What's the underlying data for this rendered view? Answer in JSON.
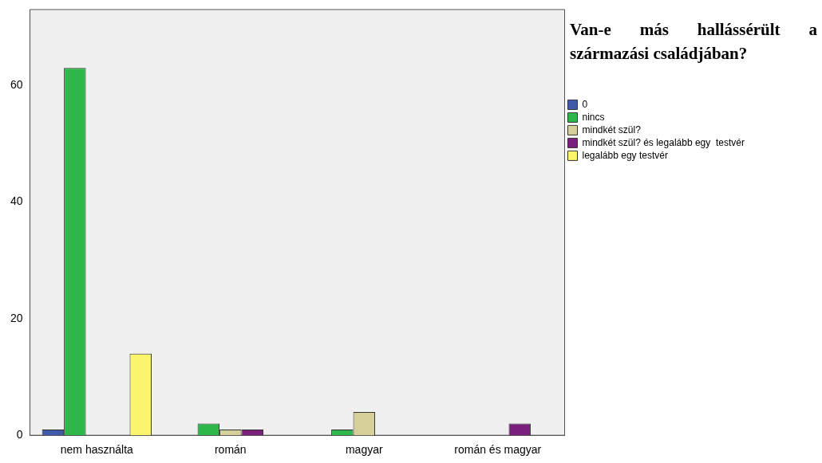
{
  "chart_data": {
    "type": "bar",
    "title": "Van-e más hallássérült a származási családjában?",
    "categories": [
      "nem használta",
      "román",
      "magyar",
      "román és magyar"
    ],
    "series": [
      {
        "name": "0",
        "color": "#3e5aa8",
        "values": [
          1,
          null,
          null,
          null
        ]
      },
      {
        "name": "nincs",
        "color": "#2eb84c",
        "values": [
          63,
          2,
          1,
          null
        ]
      },
      {
        "name": "mindkét szül?",
        "color": "#d5d09a",
        "values": [
          null,
          1,
          4,
          null
        ]
      },
      {
        "name": "mindkét szül? és legalább egy  testvér",
        "color": "#7a1f7c",
        "values": [
          null,
          1,
          null,
          2
        ]
      },
      {
        "name": "legalább egy testvér",
        "color": "#fbf56e",
        "values": [
          14,
          null,
          null,
          null
        ]
      }
    ],
    "ylim": [
      0,
      73
    ],
    "yticks": [
      0,
      20,
      40,
      60
    ],
    "grid": false,
    "legend": "right"
  }
}
